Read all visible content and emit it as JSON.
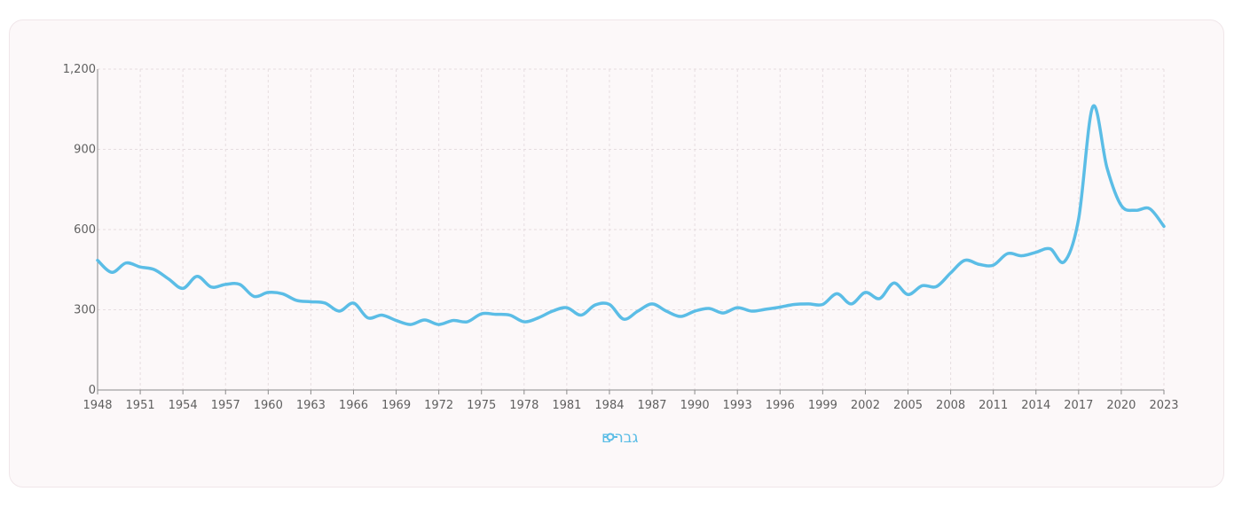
{
  "chart_data": {
    "type": "line",
    "title": "",
    "xlabel": "",
    "ylabel": "",
    "xlim": [
      1948,
      2023
    ],
    "ylim": [
      0,
      1200
    ],
    "grid": true,
    "y_ticks": [
      0,
      300,
      600,
      900,
      1200
    ],
    "y_tick_labels": [
      "0",
      "300",
      "600",
      "900",
      "1,200"
    ],
    "x_tick_labels": [
      "1948",
      "1951",
      "1954",
      "1957",
      "1960",
      "1963",
      "1966",
      "1969",
      "1972",
      "1975",
      "1978",
      "1981",
      "1984",
      "1987",
      "1990",
      "1993",
      "1996",
      "1999",
      "2002",
      "2005",
      "2008",
      "2011",
      "2014",
      "2017",
      "2020",
      "2023"
    ],
    "legend_position": "bottom-center",
    "series": [
      {
        "name": "גברים",
        "color": "#5bbde6",
        "x": [
          1948,
          1949,
          1950,
          1951,
          1952,
          1953,
          1954,
          1955,
          1956,
          1957,
          1958,
          1959,
          1960,
          1961,
          1962,
          1963,
          1964,
          1965,
          1966,
          1967,
          1968,
          1969,
          1970,
          1971,
          1972,
          1973,
          1974,
          1975,
          1976,
          1977,
          1978,
          1979,
          1980,
          1981,
          1982,
          1983,
          1984,
          1985,
          1986,
          1987,
          1988,
          1989,
          1990,
          1991,
          1992,
          1993,
          1994,
          1995,
          1996,
          1997,
          1998,
          1999,
          2000,
          2001,
          2002,
          2003,
          2004,
          2005,
          2006,
          2007,
          2008,
          2009,
          2010,
          2011,
          2012,
          2013,
          2014,
          2015,
          2016,
          2017,
          2018,
          2019,
          2020,
          2021,
          2022,
          2023
        ],
        "values": [
          485,
          440,
          475,
          460,
          450,
          415,
          380,
          425,
          385,
          395,
          395,
          350,
          365,
          360,
          335,
          330,
          325,
          295,
          325,
          270,
          280,
          260,
          245,
          262,
          245,
          260,
          255,
          285,
          283,
          280,
          255,
          270,
          295,
          308,
          280,
          318,
          320,
          265,
          295,
          322,
          295,
          275,
          295,
          305,
          288,
          308,
          295,
          302,
          310,
          320,
          322,
          320,
          360,
          322,
          365,
          342,
          400,
          357,
          390,
          387,
          438,
          485,
          470,
          467,
          510,
          502,
          515,
          528,
          480,
          640,
          1060,
          830,
          690,
          672,
          678,
          612
        ]
      }
    ]
  }
}
